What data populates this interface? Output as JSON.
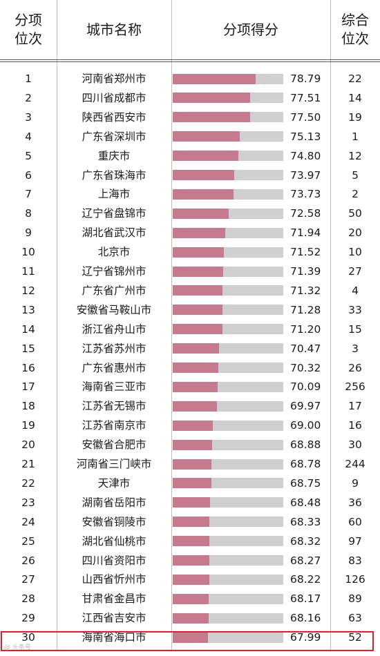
{
  "table": {
    "headers": {
      "rank_line1": "分项",
      "rank_line2": "位次",
      "city": "城市名称",
      "score": "分项得分",
      "overall_line1": "综合",
      "overall_line2": "位次"
    },
    "colors": {
      "bar_fill": "#c57a8e",
      "bar_track": "#cfcfcf",
      "highlight_border": "#d8232a"
    },
    "highlighted_rank": 30,
    "rows": [
      {
        "rank": "1",
        "city": "河南省郑州市",
        "score": "78.79",
        "overall": "22"
      },
      {
        "rank": "2",
        "city": "四川省成都市",
        "score": "77.51",
        "overall": "14"
      },
      {
        "rank": "3",
        "city": "陕西省西安市",
        "score": "77.50",
        "overall": "19"
      },
      {
        "rank": "4",
        "city": "广东省深圳市",
        "score": "75.13",
        "overall": "1"
      },
      {
        "rank": "5",
        "city": "重庆市",
        "score": "74.80",
        "overall": "12"
      },
      {
        "rank": "6",
        "city": "广东省珠海市",
        "score": "73.97",
        "overall": "5"
      },
      {
        "rank": "7",
        "city": "上海市",
        "score": "73.73",
        "overall": "2"
      },
      {
        "rank": "8",
        "city": "辽宁省盘锦市",
        "score": "72.58",
        "overall": "50"
      },
      {
        "rank": "9",
        "city": "湖北省武汉市",
        "score": "71.94",
        "overall": "20"
      },
      {
        "rank": "10",
        "city": "北京市",
        "score": "71.52",
        "overall": "10"
      },
      {
        "rank": "11",
        "city": "辽宁省锦州市",
        "score": "71.39",
        "overall": "27"
      },
      {
        "rank": "12",
        "city": "广东省广州市",
        "score": "71.32",
        "overall": "4"
      },
      {
        "rank": "13",
        "city": "安徽省马鞍山市",
        "score": "71.28",
        "overall": "33"
      },
      {
        "rank": "14",
        "city": "浙江省舟山市",
        "score": "71.20",
        "overall": "15"
      },
      {
        "rank": "15",
        "city": "江苏省苏州市",
        "score": "70.47",
        "overall": "3"
      },
      {
        "rank": "16",
        "city": "广东省惠州市",
        "score": "70.32",
        "overall": "26"
      },
      {
        "rank": "17",
        "city": "海南省三亚市",
        "score": "70.09",
        "overall": "256"
      },
      {
        "rank": "18",
        "city": "江苏省无锡市",
        "score": "69.97",
        "overall": "17"
      },
      {
        "rank": "19",
        "city": "江苏省南京市",
        "score": "69.00",
        "overall": "16"
      },
      {
        "rank": "20",
        "city": "安徽省合肥市",
        "score": "68.88",
        "overall": "30"
      },
      {
        "rank": "21",
        "city": "河南省三门峡市",
        "score": "68.78",
        "overall": "244"
      },
      {
        "rank": "22",
        "city": "天津市",
        "score": "68.75",
        "overall": "9"
      },
      {
        "rank": "23",
        "city": "湖南省岳阳市",
        "score": "68.48",
        "overall": "36"
      },
      {
        "rank": "24",
        "city": "安徽省铜陵市",
        "score": "68.33",
        "overall": "60"
      },
      {
        "rank": "25",
        "city": "湖北省仙桃市",
        "score": "68.32",
        "overall": "97"
      },
      {
        "rank": "26",
        "city": "四川省资阳市",
        "score": "68.27",
        "overall": "83"
      },
      {
        "rank": "27",
        "city": "山西省忻州市",
        "score": "68.22",
        "overall": "126"
      },
      {
        "rank": "28",
        "city": "甘肃省金昌市",
        "score": "68.17",
        "overall": "89"
      },
      {
        "rank": "29",
        "city": "江西省吉安市",
        "score": "68.16",
        "overall": "63"
      },
      {
        "rank": "30",
        "city": "海南省海口市",
        "score": "67.99",
        "overall": "52"
      }
    ]
  }
}
